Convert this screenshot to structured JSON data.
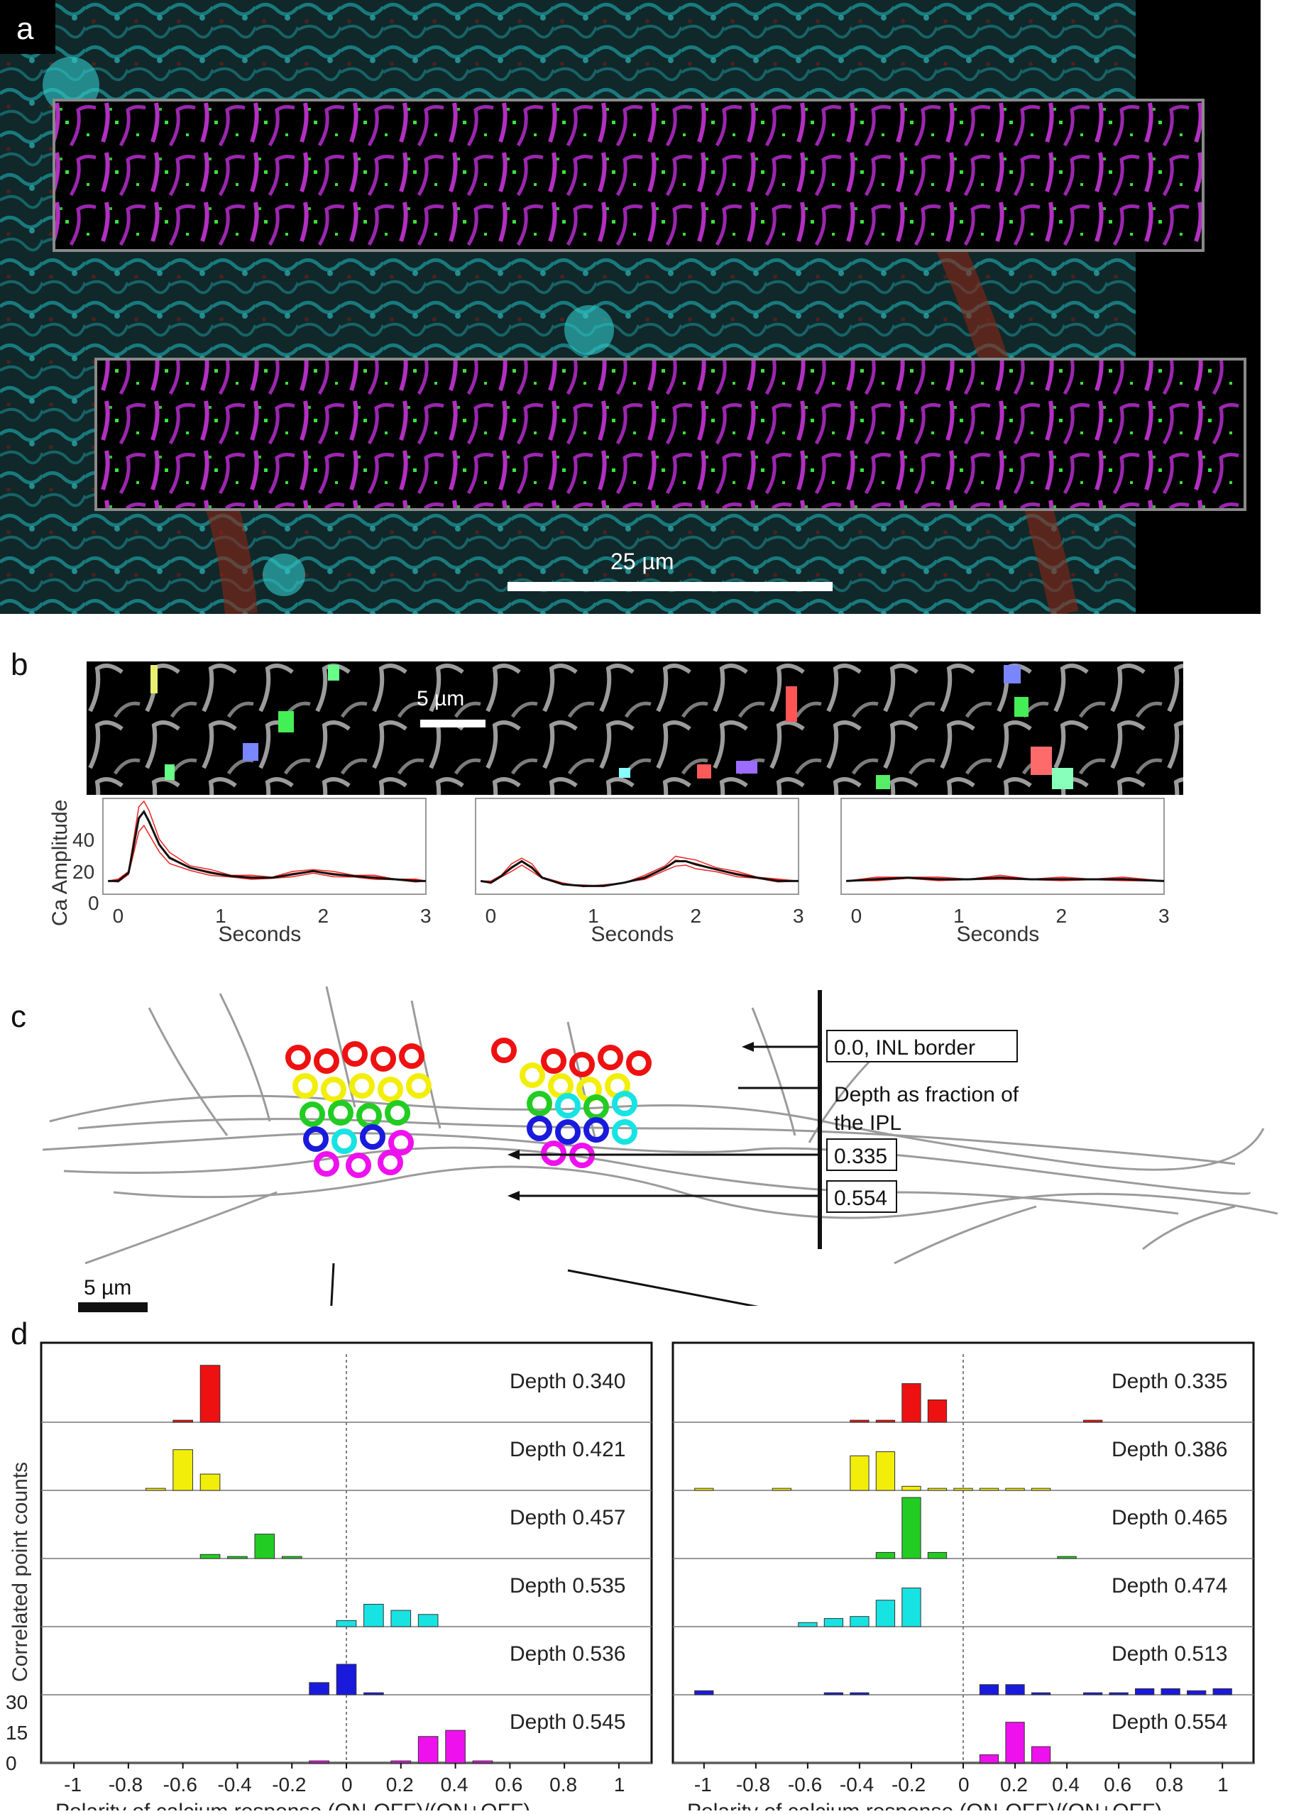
{
  "panels": {
    "a": {
      "label": "a",
      "scale_bar": "25 µm"
    },
    "b": {
      "label": "b",
      "scale_bar": "5 µm",
      "ylabel": "Ca Amplitude",
      "xlabel": "Seconds",
      "yticks": [
        "40",
        "20",
        "0"
      ],
      "xticks": [
        "0",
        "1",
        "2",
        "3"
      ]
    },
    "c": {
      "label": "c",
      "scale_bar": "5 µm",
      "depth_title": "Depth as fraction of\nthe IPL",
      "depth_marks": [
        "0.0, INL border",
        "0.335",
        "0.554"
      ]
    },
    "d": {
      "label": "d"
    }
  },
  "colors": {
    "red": "#ee1111",
    "yellow": "#f2ee0a",
    "green": "#22cc22",
    "cyan": "#17e3e3",
    "blue": "#1a1add",
    "magenta": "#ee11ee",
    "cyan_img": "#1fb3b3",
    "magenta_img": "#b12fc0"
  },
  "chart_data": [
    {
      "type": "line",
      "title": "",
      "xlabel": "Seconds",
      "ylabel": "Ca Amplitude",
      "xlim": [
        -0.15,
        3
      ],
      "ylim": [
        -8,
        50
      ],
      "series": [
        {
          "x": [
            -0.1,
            0.0,
            0.1,
            0.2,
            0.25,
            0.3,
            0.4,
            0.5,
            0.7,
            0.9,
            1.1,
            1.3,
            1.5,
            1.7,
            1.9,
            2.1,
            2.3,
            2.5,
            2.7,
            2.9,
            3.0
          ],
          "values": [
            0,
            0,
            5,
            38,
            42,
            36,
            22,
            14,
            8,
            5,
            3,
            2,
            2,
            4,
            6,
            4,
            3,
            2,
            1,
            0,
            0
          ]
        }
      ]
    },
    {
      "type": "line",
      "title": "",
      "xlabel": "Seconds",
      "ylabel": "",
      "xlim": [
        -0.15,
        3
      ],
      "ylim": [
        -8,
        50
      ],
      "series": [
        {
          "x": [
            -0.1,
            0.0,
            0.1,
            0.2,
            0.3,
            0.4,
            0.5,
            0.7,
            0.9,
            1.1,
            1.3,
            1.5,
            1.7,
            1.8,
            1.9,
            2.0,
            2.2,
            2.4,
            2.6,
            2.8,
            3.0
          ],
          "values": [
            0,
            -1,
            3,
            8,
            12,
            8,
            2,
            -2,
            -3,
            -3,
            -1,
            2,
            8,
            12,
            12,
            10,
            7,
            4,
            2,
            0,
            0
          ]
        }
      ]
    },
    {
      "type": "line",
      "title": "",
      "xlabel": "Seconds",
      "ylabel": "",
      "xlim": [
        -0.15,
        3
      ],
      "ylim": [
        -8,
        50
      ],
      "series": [
        {
          "x": [
            -0.1,
            0.2,
            0.5,
            0.8,
            1.1,
            1.4,
            1.7,
            2.0,
            2.3,
            2.6,
            3.0
          ],
          "values": [
            0,
            1,
            2,
            1,
            1,
            2,
            1,
            1,
            1,
            1,
            0
          ]
        }
      ]
    },
    {
      "type": "bar",
      "title": "",
      "xlabel": "Polarity of calcium response (ON-OFF)/(ON+OFF)",
      "ylabel": "Correlated point counts",
      "xticks": [
        "-1",
        "-0.8",
        "-0.6",
        "-0.4",
        "-0.2",
        "0",
        "0.2",
        "0.4",
        "0.6",
        "0.8",
        "1"
      ],
      "yticks": [
        "0",
        "15",
        "30"
      ],
      "ylim": [
        0,
        30
      ],
      "series": [
        {
          "name": "Depth 0.340",
          "color": "red",
          "x": [
            -0.6,
            -0.5
          ],
          "values": [
            1,
            28
          ]
        },
        {
          "name": "Depth 0.421",
          "color": "yellow",
          "x": [
            -0.7,
            -0.6,
            -0.5
          ],
          "values": [
            1,
            20,
            8
          ]
        },
        {
          "name": "Depth 0.457",
          "color": "green",
          "x": [
            -0.5,
            -0.4,
            -0.3,
            -0.2
          ],
          "values": [
            2,
            1,
            12,
            1
          ]
        },
        {
          "name": "Depth 0.535",
          "color": "cyan",
          "x": [
            0.0,
            0.1,
            0.2,
            0.3
          ],
          "values": [
            3,
            11,
            8,
            6
          ]
        },
        {
          "name": "Depth 0.536",
          "color": "blue",
          "x": [
            -0.1,
            0.0,
            0.1
          ],
          "values": [
            6,
            15,
            1
          ]
        },
        {
          "name": "Depth 0.545",
          "color": "magenta",
          "x": [
            -0.1,
            0.2,
            0.3,
            0.4,
            0.5
          ],
          "values": [
            1,
            1,
            13,
            16,
            1
          ]
        }
      ]
    },
    {
      "type": "bar",
      "title": "",
      "xlabel": "Polarity of calcium response (ON-OFF)/(ON+OFF)",
      "ylabel": "",
      "xticks": [
        "-1",
        "-0.8",
        "-0.6",
        "-0.4",
        "-0.2",
        "0",
        "0.2",
        "0.4",
        "0.6",
        "0.8",
        "1"
      ],
      "ylim": [
        0,
        30
      ],
      "series": [
        {
          "name": "Depth 0.335",
          "color": "red",
          "x": [
            -0.4,
            -0.3,
            -0.2,
            -0.1,
            0.5
          ],
          "values": [
            1,
            1,
            19,
            11,
            1
          ]
        },
        {
          "name": "Depth 0.386",
          "color": "yellow",
          "x": [
            -1.0,
            -0.7,
            -0.4,
            -0.3,
            -0.2,
            -0.1,
            0.0,
            0.1,
            0.2,
            0.3
          ],
          "values": [
            1,
            1,
            17,
            19,
            2,
            1,
            1,
            1,
            1,
            1
          ]
        },
        {
          "name": "Depth 0.465",
          "color": "green",
          "x": [
            -0.3,
            -0.2,
            -0.1,
            0.4
          ],
          "values": [
            3,
            30,
            3,
            1
          ]
        },
        {
          "name": "Depth 0.474",
          "color": "cyan",
          "x": [
            -0.6,
            -0.5,
            -0.4,
            -0.3,
            -0.2
          ],
          "values": [
            2,
            4,
            5,
            13,
            19
          ]
        },
        {
          "name": "Depth 0.513",
          "color": "blue",
          "x": [
            -1.0,
            -0.5,
            -0.4,
            0.1,
            0.2,
            0.3,
            0.5,
            0.6,
            0.7,
            0.8,
            0.9,
            1.0
          ],
          "values": [
            2,
            1,
            1,
            5,
            5,
            1,
            1,
            1,
            3,
            3,
            2,
            3
          ]
        },
        {
          "name": "Depth 0.554",
          "color": "magenta",
          "x": [
            0.1,
            0.2,
            0.3
          ],
          "values": [
            4,
            20,
            8
          ]
        }
      ]
    }
  ]
}
